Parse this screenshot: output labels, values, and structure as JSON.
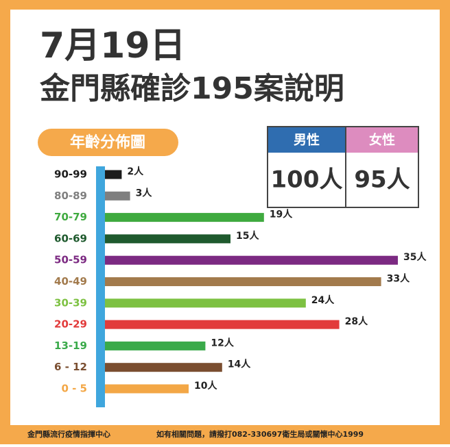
{
  "chart_data": {
    "type": "bar",
    "title": "7月19日",
    "subtitle": "金門縣確診195案說明",
    "label": "年齡分佈圖",
    "categories": [
      "90-99",
      "80-89",
      "70-79",
      "60-69",
      "50-59",
      "40-49",
      "30-39",
      "20-29",
      "13-19",
      "6 - 12",
      "0 - 5"
    ],
    "values": [
      2,
      3,
      19,
      15,
      35,
      33,
      24,
      28,
      12,
      14,
      10
    ],
    "value_labels": [
      "2人",
      "3人",
      "19人",
      "15人",
      "35人",
      "33人",
      "24人",
      "28人",
      "12人",
      "14人",
      "10人"
    ],
    "colors": [
      "#1c1c1c",
      "#7f7f7f",
      "#3faa3f",
      "#1f5a2e",
      "#7c2a82",
      "#a27a4c",
      "#7dc142",
      "#e23b3b",
      "#3aaa4a",
      "#7a4e30",
      "#f3a746"
    ]
  },
  "gender_table": {
    "headers": [
      "男性",
      "女性"
    ],
    "values": [
      "100人",
      "95人"
    ]
  },
  "footer": {
    "left": "金門縣流行疫情指揮中心",
    "right": "如有相關問題，請撥打082-330697衛生局或關懷中心1999"
  }
}
